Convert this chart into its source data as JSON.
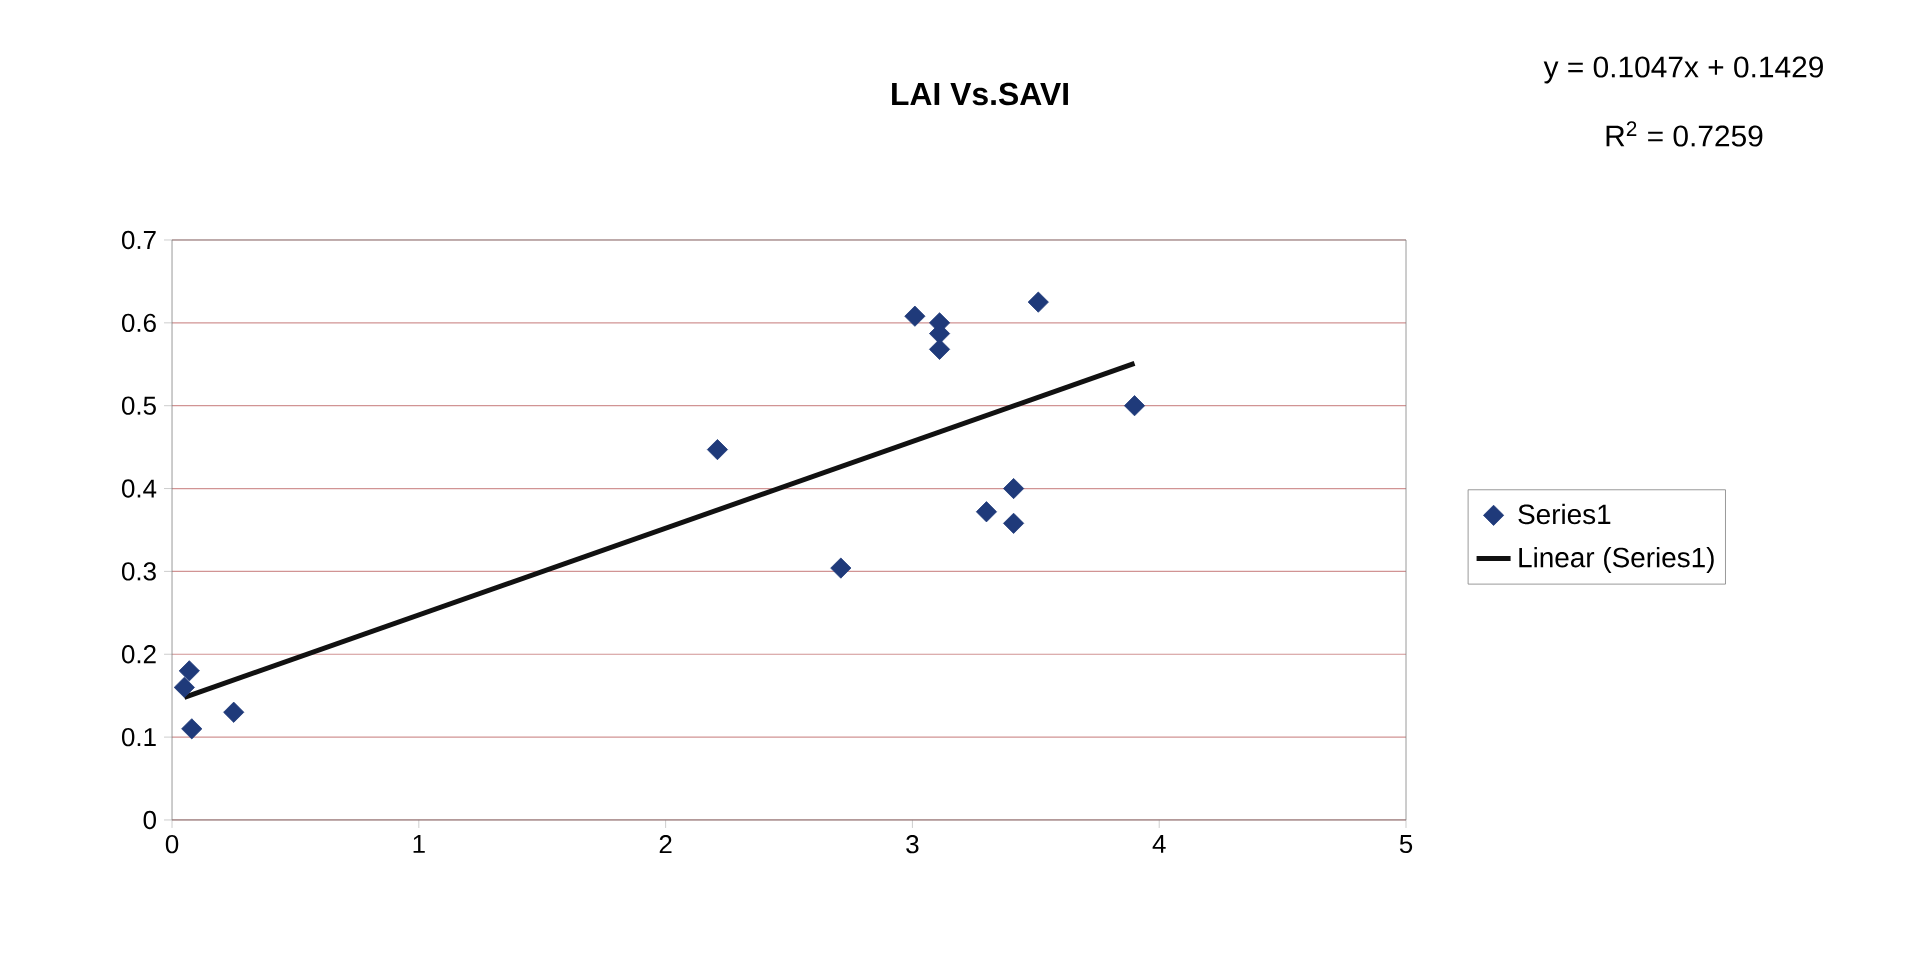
{
  "chart_data": {
    "type": "scatter",
    "title": "LAI Vs.SAVI",
    "annotations": [
      "y = 0.1047x + 0.1429",
      "R$^{2}$ = 0.7259"
    ],
    "xlim": [
      0,
      5
    ],
    "xticks": [
      0,
      1,
      2,
      3,
      4,
      5
    ],
    "ylim": [
      0,
      0.7
    ],
    "yticks": [
      0,
      0.1,
      0.2,
      0.3,
      0.4,
      0.5,
      0.6,
      0.7
    ],
    "grid": "y",
    "legend": "right",
    "marker": "diamond",
    "series": [
      {
        "name": "Series1",
        "color": "#1f3a7a",
        "x": [
          0.07,
          0.05,
          0.08,
          0.25,
          2.21,
          2.71,
          3.01,
          3.11,
          3.11,
          3.11,
          3.51,
          3.9,
          3.3,
          3.41,
          3.41
        ],
        "values": [
          0.18,
          0.16,
          0.11,
          0.13,
          0.447,
          0.304,
          0.608,
          0.6,
          0.587,
          0.568,
          0.625,
          0.5,
          0.372,
          0.4,
          0.358
        ]
      },
      {
        "name": "Linear (Series1)",
        "type": "line",
        "color": "#111111",
        "marker": "none",
        "x": [
          0.05,
          3.9
        ],
        "values": [
          0.148,
          0.551
        ]
      }
    ]
  }
}
